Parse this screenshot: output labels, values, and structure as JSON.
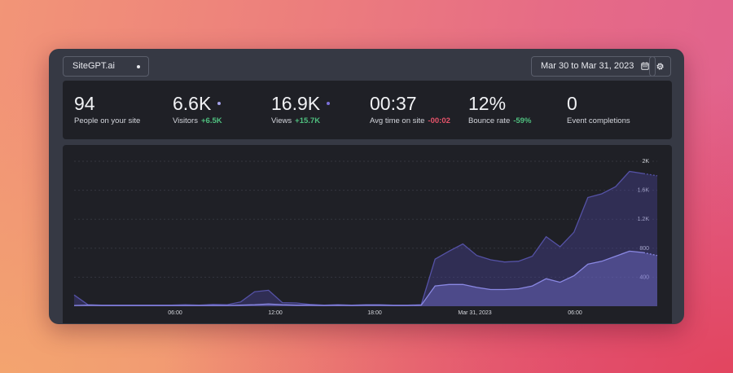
{
  "header": {
    "site_name": "SiteGPT.ai",
    "date_range": "Mar 30 to Mar 31, 2023"
  },
  "icons": {
    "site_dot": "dot-icon",
    "calendar": "calendar-icon",
    "settings": "gear-icon"
  },
  "stats": [
    {
      "value": "94",
      "label": "People on your site",
      "change": "",
      "change_type": ""
    },
    {
      "value": "6.6K",
      "label": "Visitors",
      "change": "+6.5K",
      "change_type": "positive"
    },
    {
      "value": "16.9K",
      "label": "Views",
      "change": "+15.7K",
      "change_type": "positive"
    },
    {
      "value": "00:37",
      "label": "Avg time on site",
      "change": "-00:02",
      "change_type": "negative"
    },
    {
      "value": "12%",
      "label": "Bounce rate",
      "change": "-59%",
      "change_type": "positive"
    },
    {
      "value": "0",
      "label": "Event completions",
      "change": "",
      "change_type": ""
    }
  ],
  "colors": {
    "visitors": "#8a88e3",
    "views": "#5552a6",
    "positive": "#4fbf7f",
    "negative": "#e5536a"
  },
  "chart_data": {
    "type": "area",
    "x_tick_labels": [
      "06:00",
      "12:00",
      "18:00",
      "Mar 31, 2023",
      "06:00"
    ],
    "y_tick_labels": [
      "2K",
      "1.6K",
      "1.2K",
      "800",
      "400"
    ],
    "ylim": [
      0,
      2000
    ],
    "grid": true,
    "series": [
      {
        "name": "Views",
        "values": [
          155,
          20,
          15,
          15,
          15,
          15,
          15,
          15,
          20,
          15,
          25,
          20,
          60,
          200,
          220,
          50,
          45,
          25,
          15,
          20,
          15,
          20,
          20,
          15,
          15,
          20,
          650,
          760,
          860,
          700,
          640,
          610,
          620,
          690,
          960,
          820,
          1020,
          1500,
          1550,
          1650,
          1860,
          1830,
          1800
        ]
      },
      {
        "name": "Visitors",
        "values": [
          10,
          15,
          10,
          10,
          10,
          10,
          10,
          10,
          10,
          10,
          10,
          10,
          15,
          20,
          30,
          20,
          15,
          15,
          10,
          15,
          10,
          15,
          15,
          10,
          10,
          15,
          280,
          300,
          300,
          260,
          230,
          230,
          240,
          280,
          380,
          330,
          420,
          580,
          620,
          690,
          760,
          740,
          700
        ]
      }
    ]
  }
}
